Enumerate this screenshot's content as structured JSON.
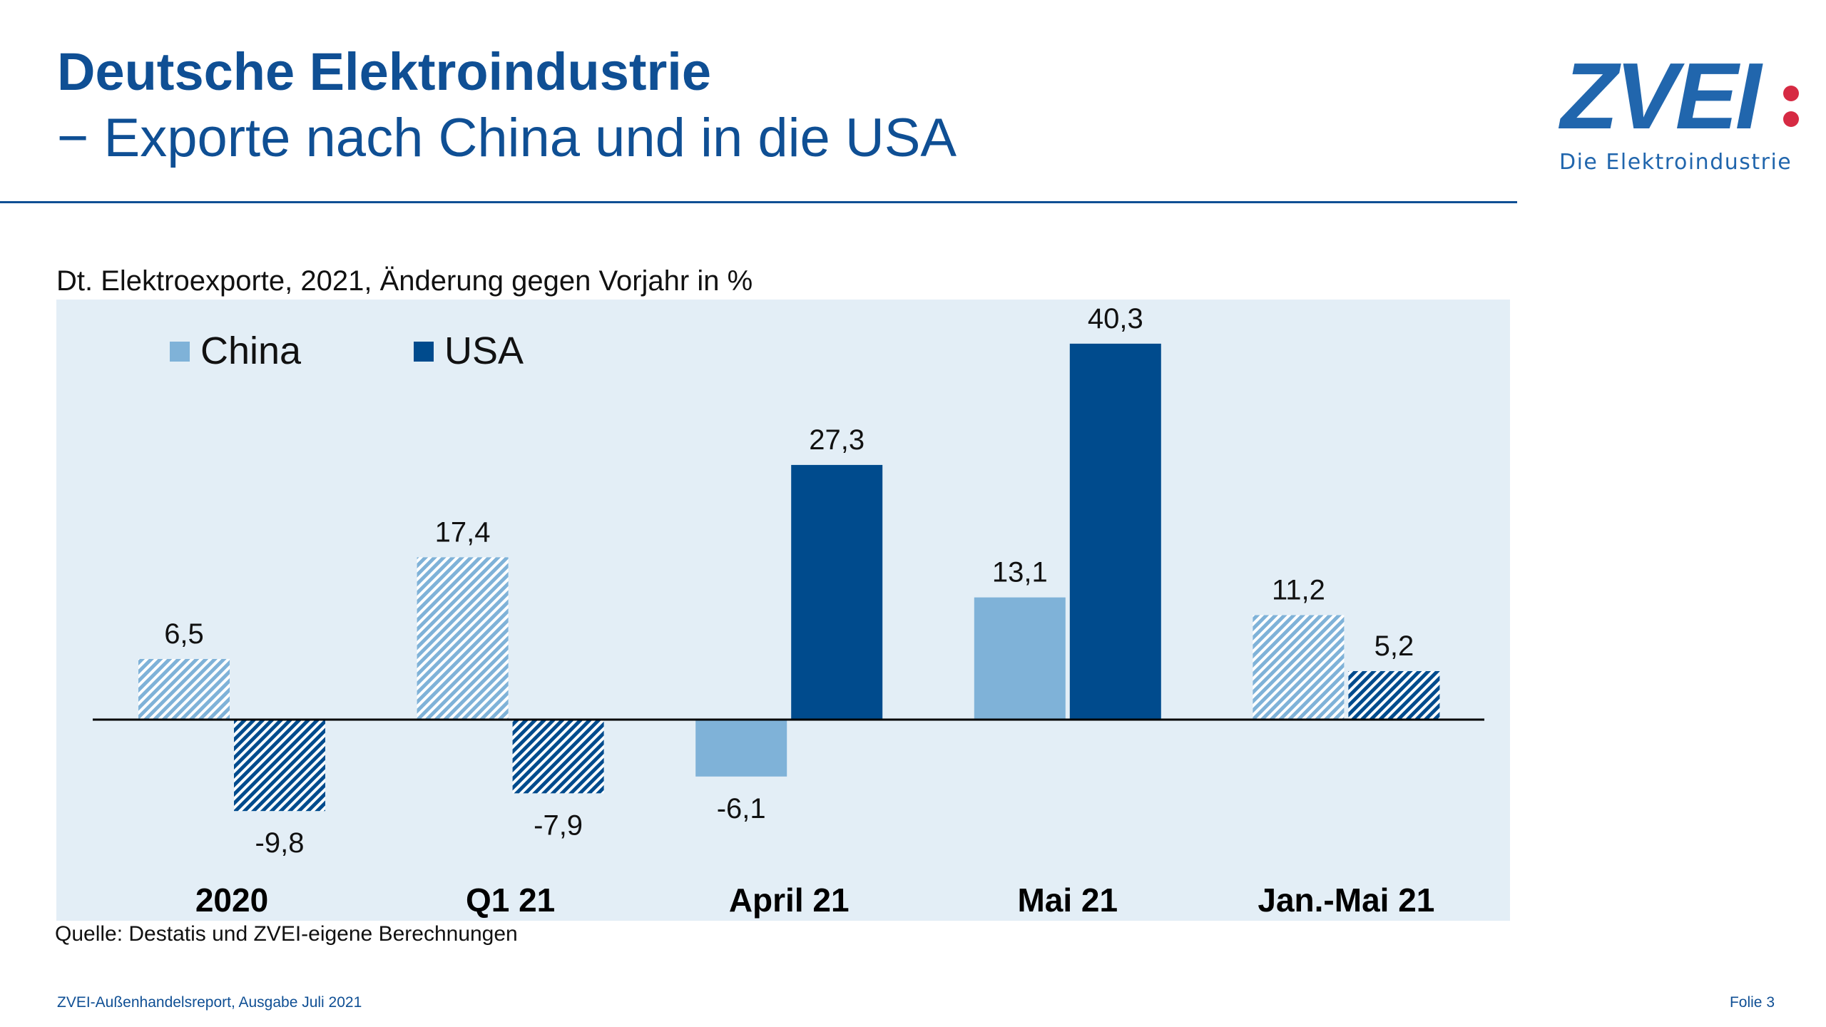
{
  "header": {
    "title": "Deutsche Elektroindustrie",
    "subtitle": "− Exporte nach China und in die USA"
  },
  "logo": {
    "text": "ZVEI",
    "tagline": "Die Elektroindustrie",
    "colors": {
      "blue": "#2166ad",
      "red": "#d62a43"
    }
  },
  "chart_data": {
    "type": "bar",
    "title": "Dt. Elektroexporte, 2021, Änderung gegen Vorjahr in %",
    "categories": [
      "2020",
      "Q1 21",
      "April 21",
      "Mai 21",
      "Jan.-Mai 21"
    ],
    "series": [
      {
        "name": "China",
        "color": "#7fb2d8",
        "values": [
          6.5,
          17.4,
          -6.1,
          13.1,
          11.2
        ],
        "labels": [
          "6,5",
          "17,4",
          "-6,1",
          "13,1",
          "11,2"
        ]
      },
      {
        "name": "USA",
        "color": "#004b8d",
        "values": [
          -9.8,
          -7.9,
          27.3,
          40.3,
          5.2
        ],
        "labels": [
          "-9,8",
          "-7,9",
          "27,3",
          "40,3",
          "5,2"
        ]
      }
    ],
    "hatched_categories": [
      "2020",
      "Q1 21",
      "Jan.-Mai 21"
    ],
    "legend": "top-left",
    "grid": false,
    "background": "#e3eef6"
  },
  "source": "Quelle: Destatis und ZVEI-eigene Berechnungen",
  "footer": {
    "left": "ZVEI-Außenhandelsreport, Ausgabe Juli 2021",
    "right": "Folie 3"
  }
}
